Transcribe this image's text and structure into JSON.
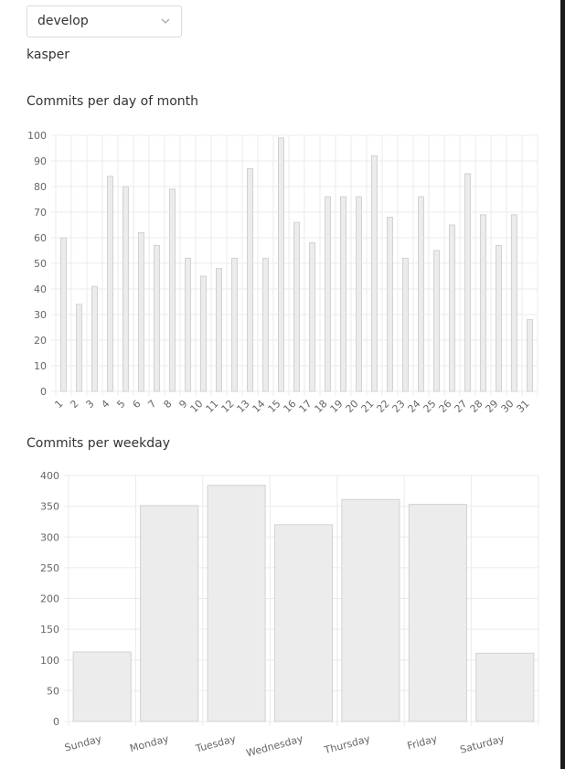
{
  "branch_select": {
    "value": "develop",
    "icon": "chevron-down-icon"
  },
  "user": {
    "name": "kasper"
  },
  "chart_data": [
    {
      "type": "bar",
      "title": "Commits per day of month",
      "categories": [
        "1",
        "2",
        "3",
        "4",
        "5",
        "6",
        "7",
        "8",
        "9",
        "10",
        "11",
        "12",
        "13",
        "14",
        "15",
        "16",
        "17",
        "18",
        "19",
        "20",
        "21",
        "22",
        "23",
        "24",
        "25",
        "26",
        "27",
        "28",
        "29",
        "30",
        "31"
      ],
      "values": [
        60,
        34,
        41,
        84,
        80,
        62,
        57,
        79,
        52,
        45,
        48,
        52,
        87,
        52,
        99,
        66,
        58,
        76,
        76,
        76,
        92,
        68,
        52,
        76,
        55,
        65,
        85,
        69,
        57,
        69,
        28
      ],
      "ylim": [
        0,
        100
      ],
      "yticks": [
        0,
        10,
        20,
        30,
        40,
        50,
        60,
        70,
        80,
        90,
        100
      ],
      "grid": true,
      "xlabel": "",
      "ylabel": ""
    },
    {
      "type": "bar",
      "title": "Commits per weekday",
      "categories": [
        "Sunday",
        "Monday",
        "Tuesday",
        "Wednesday",
        "Thursday",
        "Friday",
        "Saturday"
      ],
      "values": [
        113,
        351,
        384,
        320,
        361,
        353,
        111
      ],
      "ylim": [
        0,
        400
      ],
      "yticks": [
        0,
        50,
        100,
        150,
        200,
        250,
        300,
        350,
        400
      ],
      "grid": true,
      "xlabel": "",
      "ylabel": ""
    }
  ],
  "colors": {
    "bar_fill": "#ececec",
    "bar_stroke": "#d2d2d2",
    "grid": "#ebebeb",
    "axis_text": "#666666"
  }
}
